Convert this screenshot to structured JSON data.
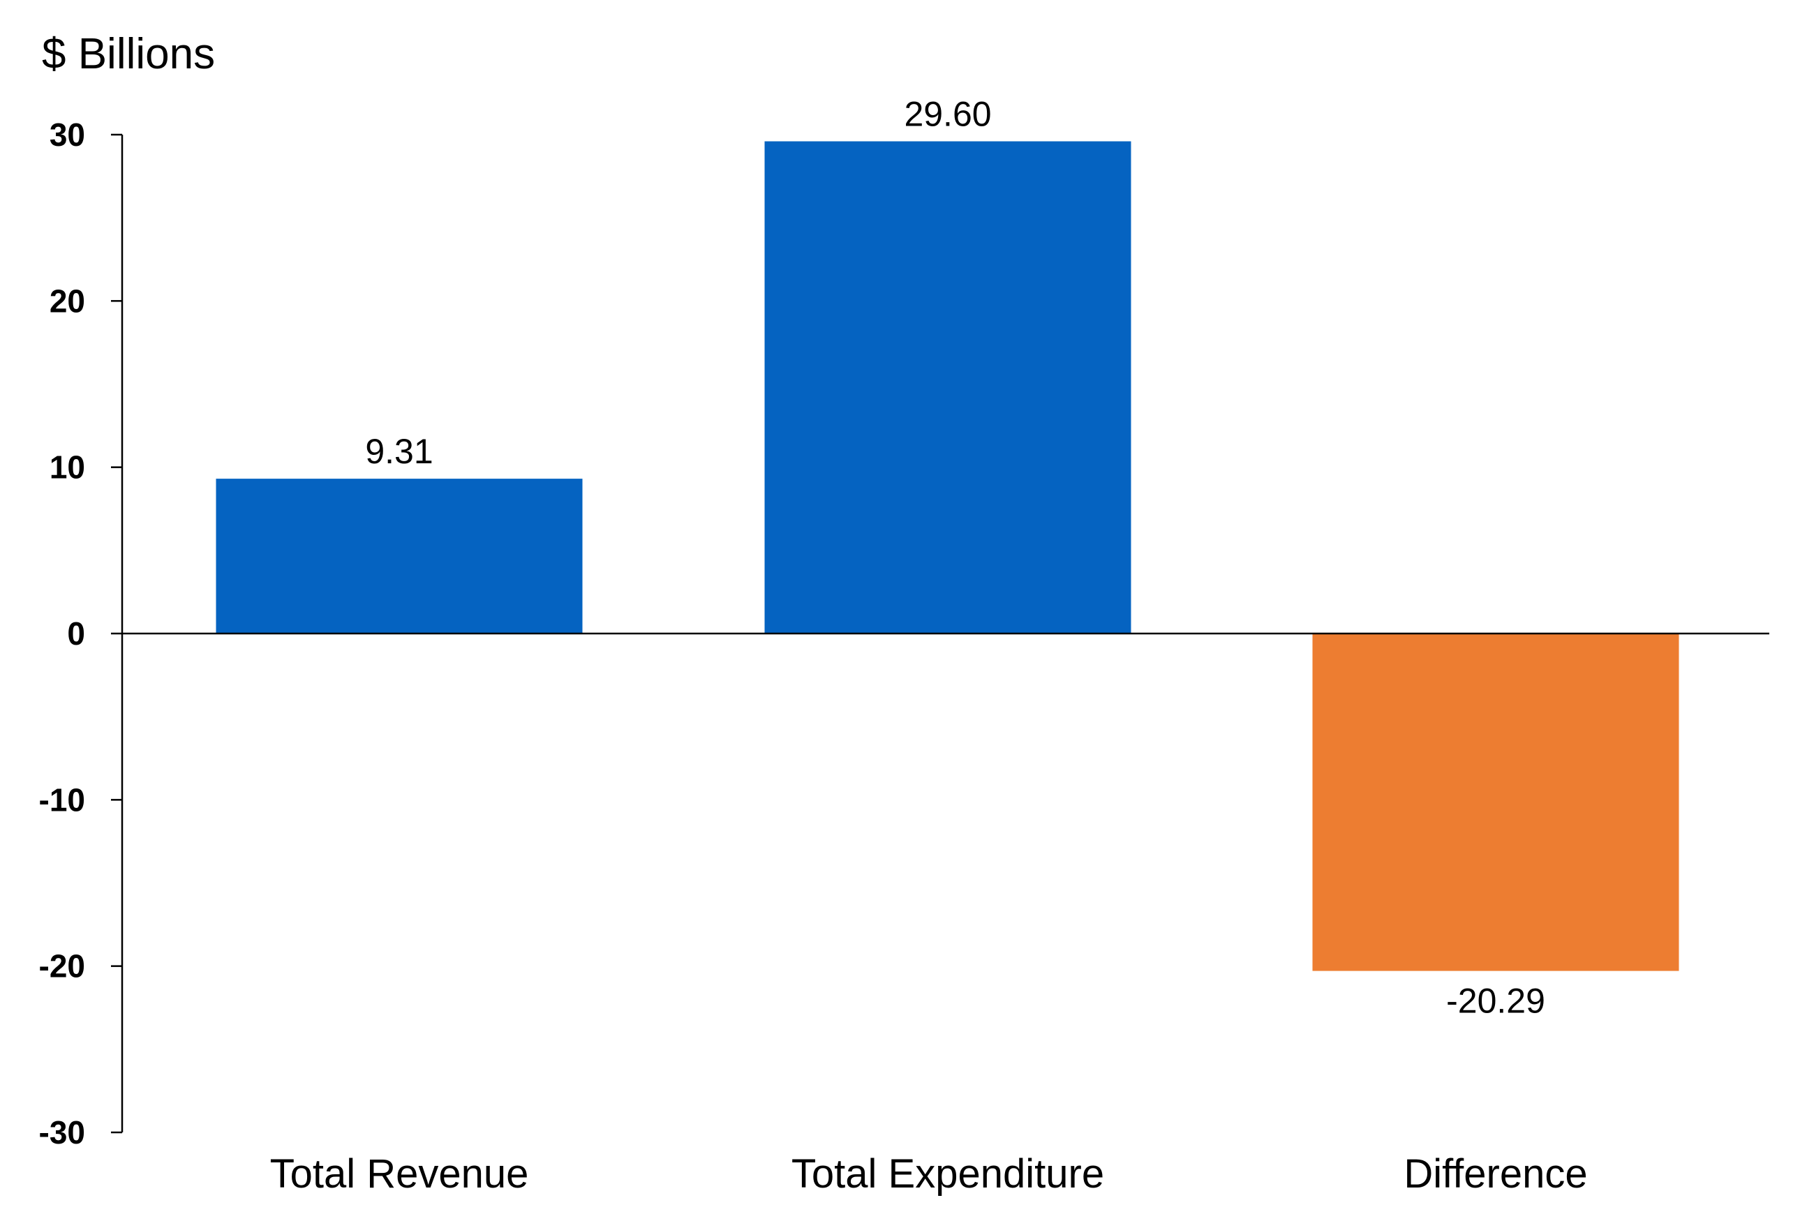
{
  "chart_data": {
    "type": "bar",
    "unit_label": "$ Billions",
    "categories": [
      "Total Revenue",
      "Total Expenditure",
      "Difference"
    ],
    "values": [
      9.31,
      29.6,
      -20.29
    ],
    "value_labels": [
      "9.31",
      "29.60",
      "-20.29"
    ],
    "colors": [
      "#0563c1",
      "#0563c1",
      "#ed7d31"
    ],
    "ylim": [
      -30,
      30
    ],
    "yticks": [
      30,
      20,
      10,
      0,
      -10,
      -20,
      -30
    ],
    "ytick_labels": [
      "30",
      "20",
      "10",
      "0",
      "-10",
      "-20",
      "-30"
    ],
    "title": "",
    "xlabel": "",
    "ylabel": "$ Billions",
    "grid": false,
    "legend": false
  }
}
